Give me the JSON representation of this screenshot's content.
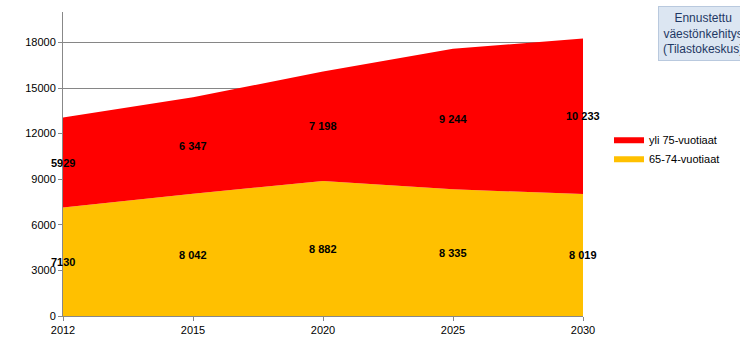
{
  "chart_data": {
    "type": "area",
    "title": "Ennustettu väestönkehitys (Tilastokeskus)",
    "categories": [
      "2012",
      "2015",
      "2020",
      "2025",
      "2030"
    ],
    "series": [
      {
        "name": "65-74-vuotiaat",
        "color": "#FFC000",
        "values": [
          7130,
          8042,
          8882,
          8335,
          8019
        ],
        "value_labels": [
          "7130",
          "8 042",
          "8 882",
          "8 335",
          "8 019"
        ]
      },
      {
        "name": "yli 75-vuotiaat",
        "color": "#FF0000",
        "values": [
          5929,
          6347,
          7198,
          9244,
          10233
        ],
        "value_labels": [
          "5929",
          "6 347",
          "7 198",
          "9 244",
          "10 233"
        ]
      }
    ],
    "stacked": true,
    "data_labels": true,
    "ylim": [
      0,
      20000
    ],
    "yticks": [
      0,
      3000,
      6000,
      9000,
      12000,
      15000,
      18000
    ],
    "grid": true,
    "legend": "right"
  }
}
